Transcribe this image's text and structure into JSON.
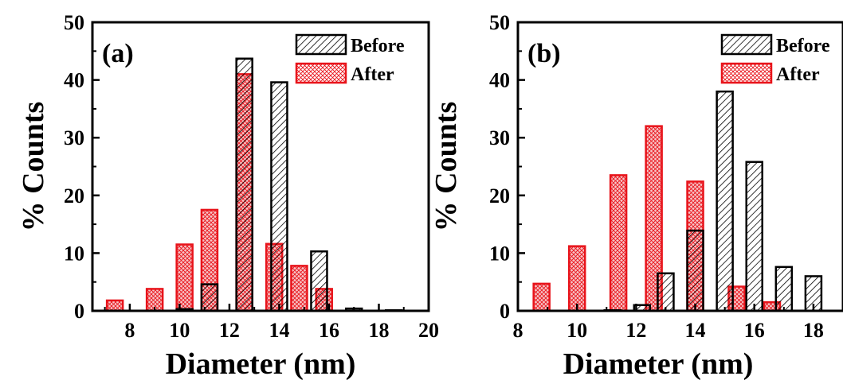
{
  "chart_data": [
    {
      "type": "bar",
      "panel_label": "(a)",
      "xlabel": "Diameter (nm)",
      "ylabel": "% Counts",
      "xlim": [
        6.5,
        20
      ],
      "ylim": [
        0,
        50
      ],
      "xticks": [
        8,
        10,
        12,
        14,
        16,
        18,
        20
      ],
      "yticks": [
        0,
        10,
        20,
        30,
        40,
        50
      ],
      "legend_position": "top-right",
      "series": [
        {
          "name": "Before",
          "color": "#000000",
          "hatch": "diagonal",
          "x": [
            10.2,
            11.2,
            12.6,
            14.0,
            15.6,
            17.0,
            18.6
          ],
          "values": [
            0.3,
            4.6,
            43.7,
            39.6,
            10.3,
            0.4,
            0.1
          ]
        },
        {
          "name": "After",
          "color": "#e8141b",
          "hatch": "crosshatch",
          "x": [
            7.4,
            9.0,
            10.2,
            11.2,
            12.6,
            13.8,
            14.8,
            15.8
          ],
          "values": [
            1.8,
            3.8,
            11.5,
            17.5,
            41.0,
            11.6,
            7.8,
            3.8
          ]
        }
      ]
    },
    {
      "type": "bar",
      "panel_label": "(b)",
      "xlabel": "Diameter (nm)",
      "ylabel": "% Counts",
      "xlim": [
        8,
        19
      ],
      "ylim": [
        0,
        50
      ],
      "xticks": [
        8,
        10,
        12,
        14,
        16,
        18
      ],
      "yticks": [
        0,
        10,
        20,
        30,
        40,
        50
      ],
      "legend_position": "top-right",
      "series": [
        {
          "name": "Before",
          "color": "#000000",
          "hatch": "diagonal",
          "x": [
            11.2,
            12.2,
            13.0,
            14.0,
            15.0,
            16.0,
            17.0,
            18.0
          ],
          "values": [
            0.1,
            1.0,
            6.5,
            13.9,
            38.0,
            25.8,
            7.6,
            6.0
          ]
        },
        {
          "name": "After",
          "color": "#e8141b",
          "hatch": "crosshatch",
          "x": [
            8.8,
            10.0,
            11.4,
            12.6,
            14.0,
            15.4,
            16.6
          ],
          "values": [
            4.7,
            11.2,
            23.5,
            32.0,
            22.4,
            4.2,
            1.5
          ]
        }
      ]
    }
  ]
}
